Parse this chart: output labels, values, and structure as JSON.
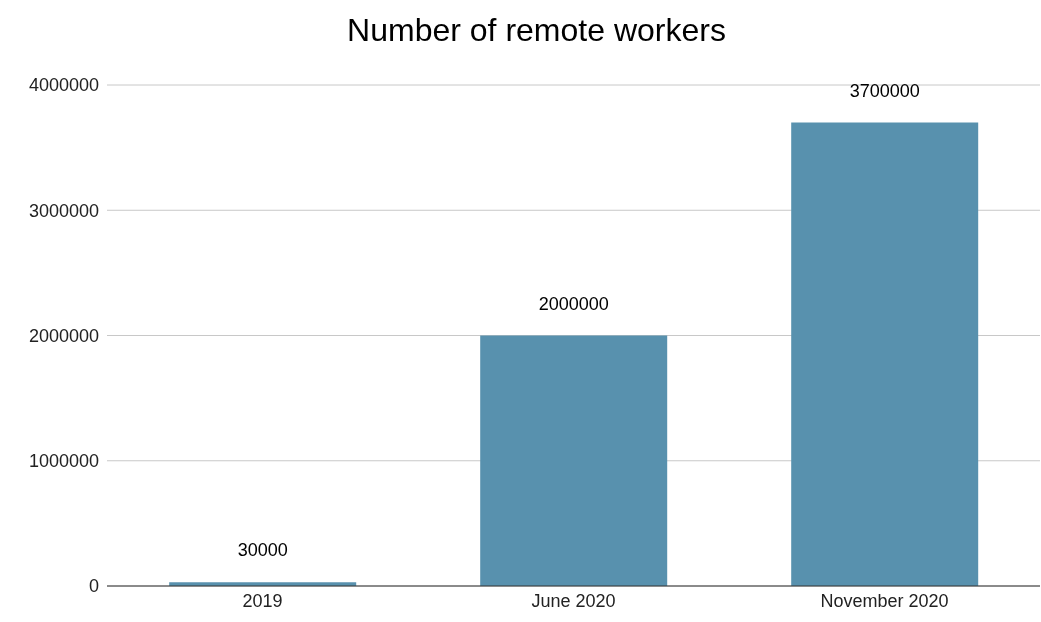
{
  "chart_data": {
    "type": "bar",
    "title": "Number of remote workers",
    "categories": [
      "2019",
      "June 2020",
      "November 2020"
    ],
    "values": [
      30000,
      2000000,
      3700000
    ],
    "color": "#5891ae",
    "ylim": [
      0,
      4000000
    ],
    "yticks": [
      0,
      1000000,
      2000000,
      3000000,
      4000000
    ],
    "grid": "y",
    "data_labels": true
  }
}
